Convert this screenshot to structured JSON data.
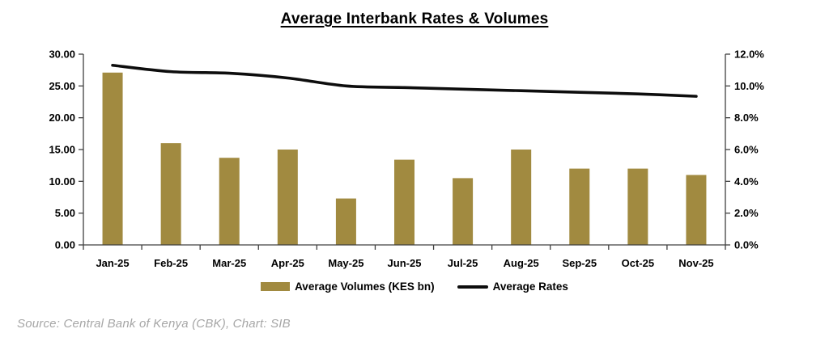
{
  "title": "Average Interbank Rates & Volumes",
  "source_note": "Source: Central Bank of Kenya (CBK), Chart: SIB",
  "colors": {
    "bar": "#A18A40",
    "line": "#0D0D0D",
    "axis": "#404040",
    "tick_text": "#000000",
    "source_text": "#A6A6A6"
  },
  "chart_data": {
    "type": "combo-bar-line",
    "categories": [
      "Jan-25",
      "Feb-25",
      "Mar-25",
      "Apr-25",
      "May-25",
      "Jun-25",
      "Jul-25",
      "Aug-25",
      "Sep-25",
      "Oct-25",
      "Nov-25"
    ],
    "series": [
      {
        "name": "Average Volumes (KES bn)",
        "type": "bar",
        "axis": "left",
        "values": [
          27.1,
          16.0,
          13.7,
          15.0,
          7.3,
          13.4,
          10.5,
          15.0,
          12.0,
          12.0,
          11.0
        ]
      },
      {
        "name": "Average Rates",
        "type": "line",
        "axis": "right",
        "values": [
          11.3,
          10.9,
          10.8,
          10.5,
          10.0,
          9.9,
          9.8,
          9.7,
          9.6,
          9.5,
          9.35
        ]
      }
    ],
    "left_axis": {
      "min": 0,
      "max": 30,
      "tick_step": 5,
      "tick_labels": [
        "0.00",
        "5.00",
        "10.00",
        "15.00",
        "20.00",
        "25.00",
        "30.00"
      ]
    },
    "right_axis": {
      "min": 0,
      "max": 12,
      "tick_step": 2,
      "tick_labels": [
        "0.0%",
        "2.0%",
        "4.0%",
        "6.0%",
        "8.0%",
        "10.0%",
        "12.0%"
      ]
    },
    "grid": false,
    "legend_position": "bottom"
  }
}
